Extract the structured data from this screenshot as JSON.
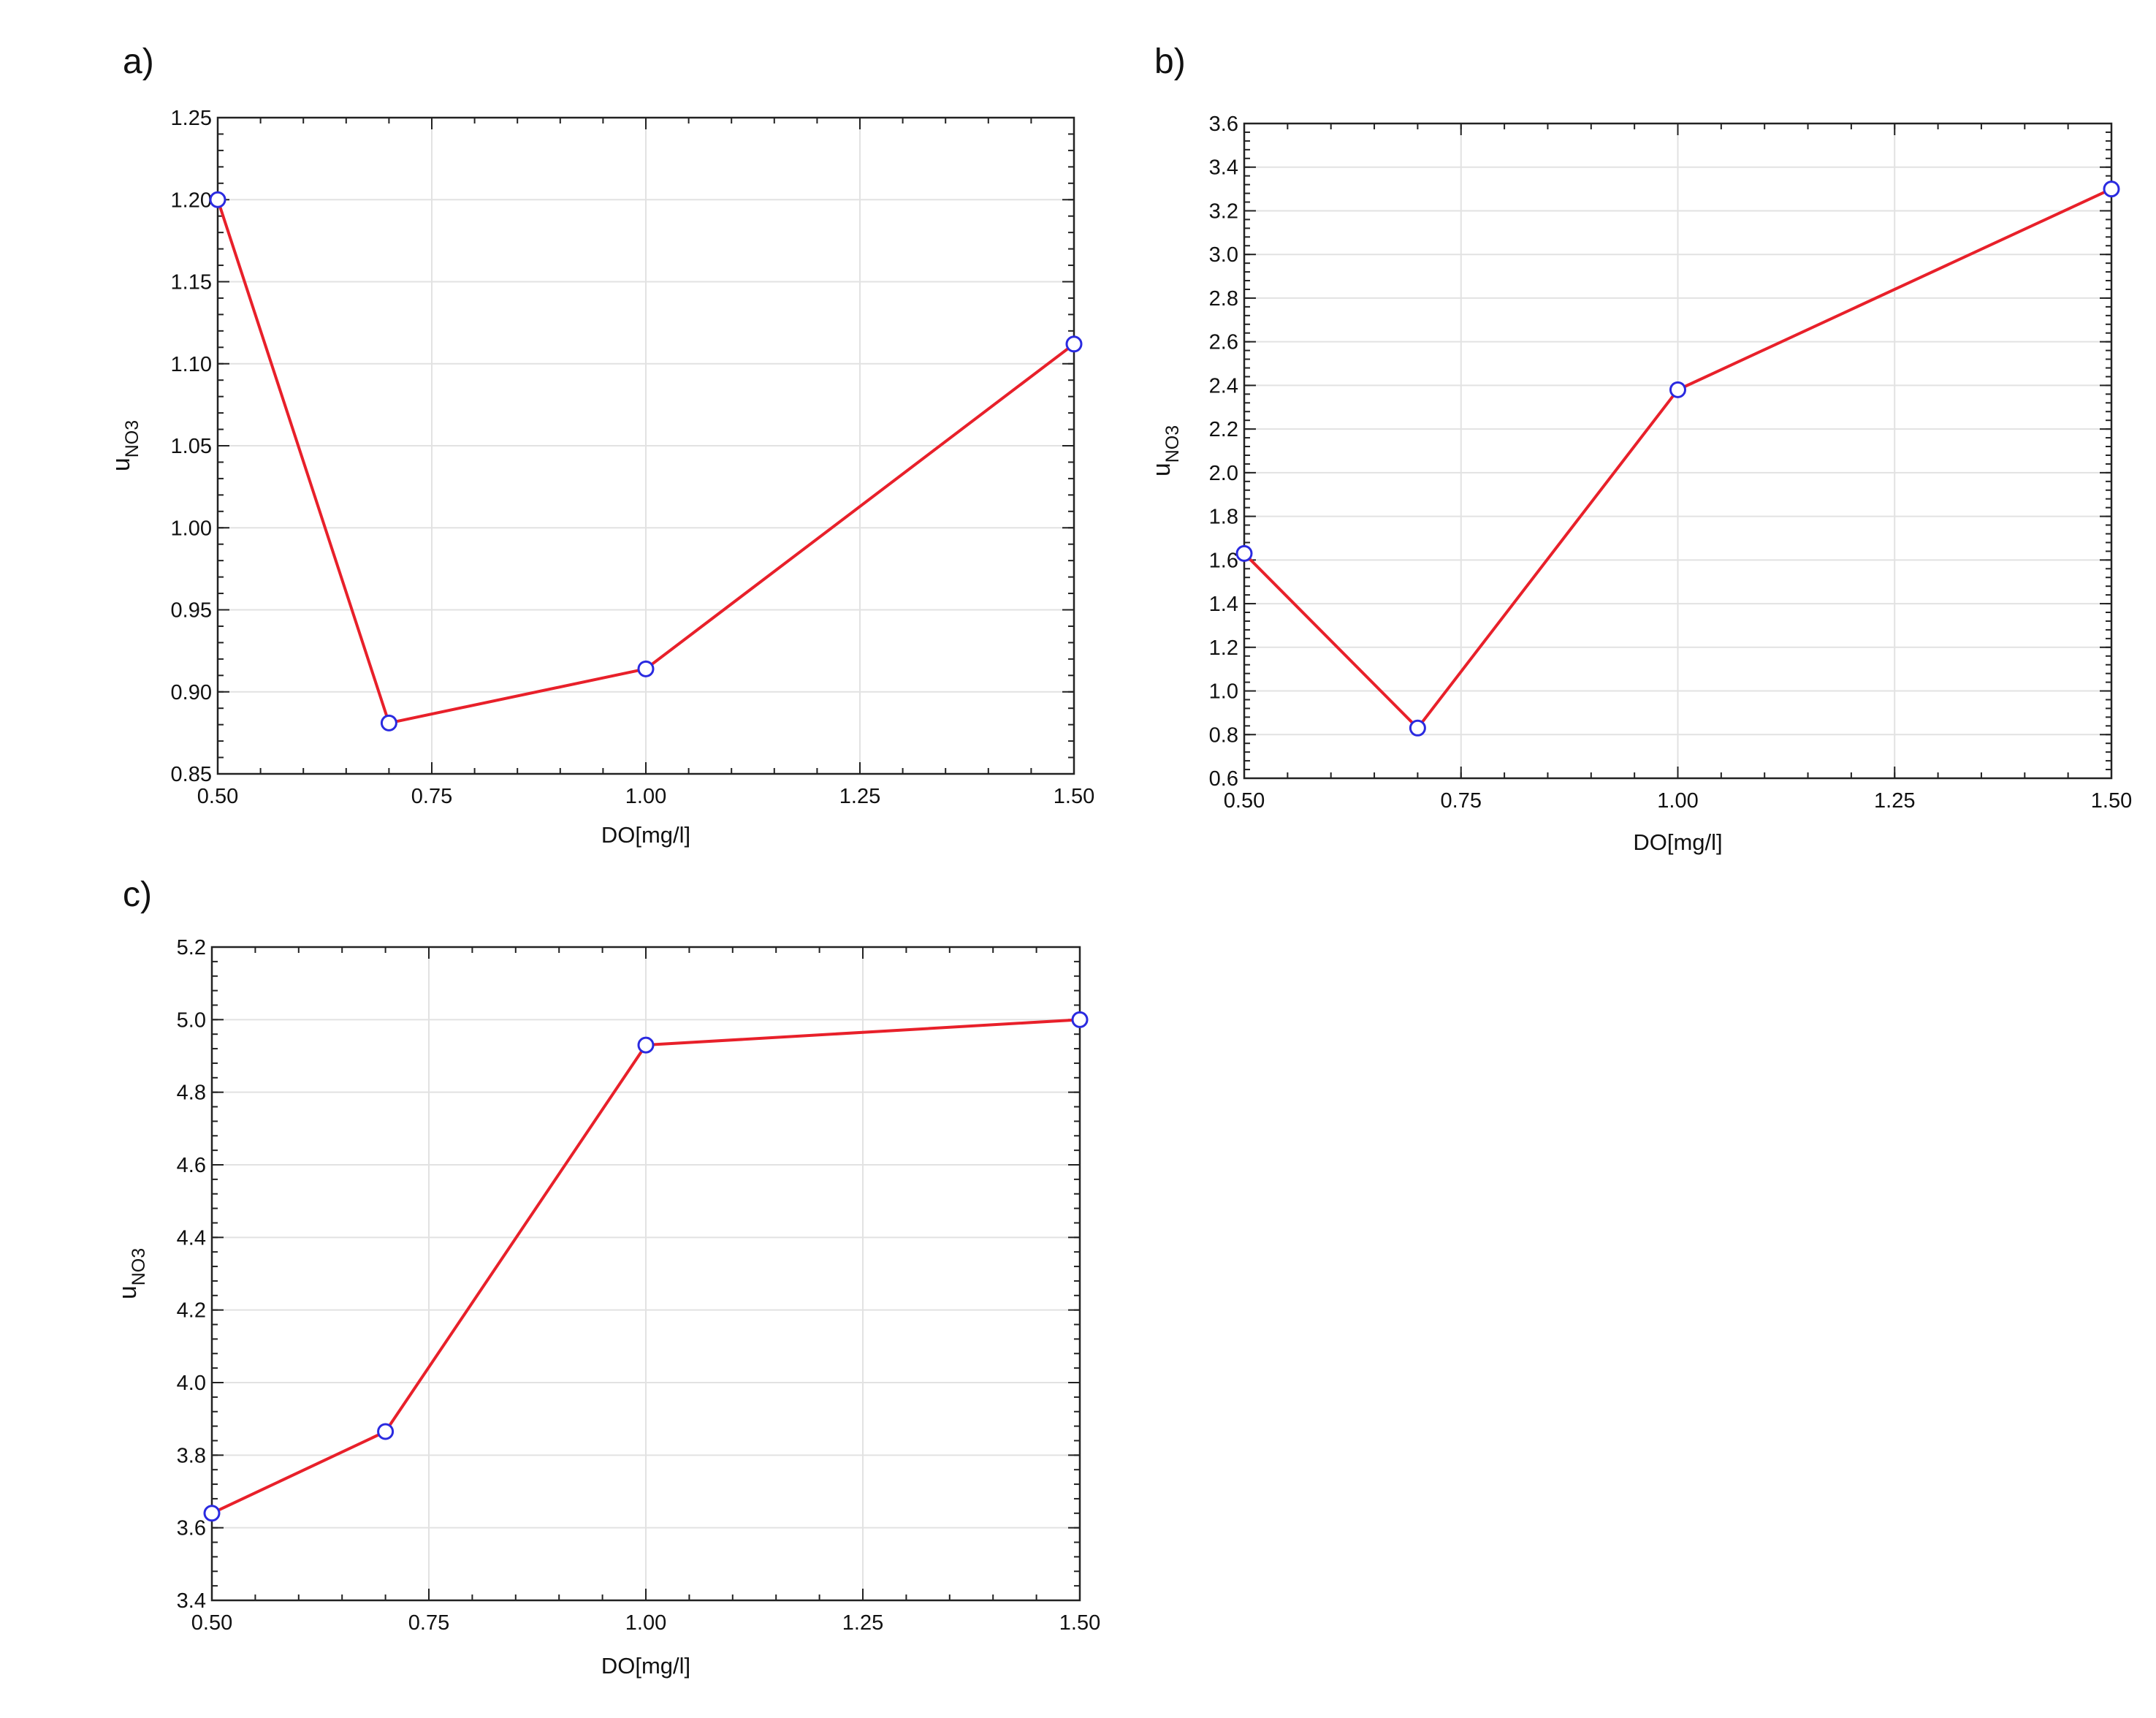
{
  "chart_data": [
    {
      "type": "line",
      "panel_label": "a)",
      "xlabel": "DO[mg/l]",
      "ylabel": "u",
      "ylabel_sub": "NO3",
      "xlim": [
        0.5,
        1.5
      ],
      "ylim": [
        0.85,
        1.25
      ],
      "xticks": [
        "0.50",
        "0.75",
        "1.00",
        "1.25",
        "1.50"
      ],
      "yticks": [
        "0.85",
        "0.90",
        "0.95",
        "1.00",
        "1.05",
        "1.10",
        "1.15",
        "1.20",
        "1.25"
      ],
      "grid": true,
      "series": [
        {
          "x": [
            0.5,
            0.7,
            1.0,
            1.5
          ],
          "y": [
            1.2,
            0.881,
            0.914,
            1.112
          ],
          "line_color": "#e8202a",
          "marker_color": "#2a2ae0"
        }
      ]
    },
    {
      "type": "line",
      "panel_label": "b)",
      "xlabel": "DO[mg/l]",
      "ylabel": "u",
      "ylabel_sub": "NO3",
      "xlim": [
        0.5,
        1.5
      ],
      "ylim": [
        0.6,
        3.6
      ],
      "xticks": [
        "0.50",
        "0.75",
        "1.00",
        "1.25",
        "1.50"
      ],
      "yticks": [
        "0.6",
        "0.8",
        "1.0",
        "1.2",
        "1.4",
        "1.6",
        "1.8",
        "2.0",
        "2.2",
        "2.4",
        "2.6",
        "2.8",
        "3.0",
        "3.2",
        "3.4",
        "3.6"
      ],
      "grid": true,
      "series": [
        {
          "x": [
            0.5,
            0.7,
            1.0,
            1.5
          ],
          "y": [
            1.63,
            0.83,
            2.38,
            3.3
          ],
          "line_color": "#e8202a",
          "marker_color": "#2a2ae0"
        }
      ]
    },
    {
      "type": "line",
      "panel_label": "c)",
      "xlabel": "DO[mg/l]",
      "ylabel": "u",
      "ylabel_sub": "NO3",
      "xlim": [
        0.5,
        1.5
      ],
      "ylim": [
        3.4,
        5.2
      ],
      "xticks": [
        "0.50",
        "0.75",
        "1.00",
        "1.25",
        "1.50"
      ],
      "yticks": [
        "3.4",
        "3.6",
        "3.8",
        "4.0",
        "4.2",
        "4.4",
        "4.6",
        "4.8",
        "5.0",
        "5.2"
      ],
      "grid": true,
      "series": [
        {
          "x": [
            0.5,
            0.7,
            1.0,
            1.5
          ],
          "y": [
            3.64,
            3.865,
            4.93,
            5.0
          ],
          "line_color": "#e8202a",
          "marker_color": "#2a2ae0"
        }
      ]
    }
  ]
}
